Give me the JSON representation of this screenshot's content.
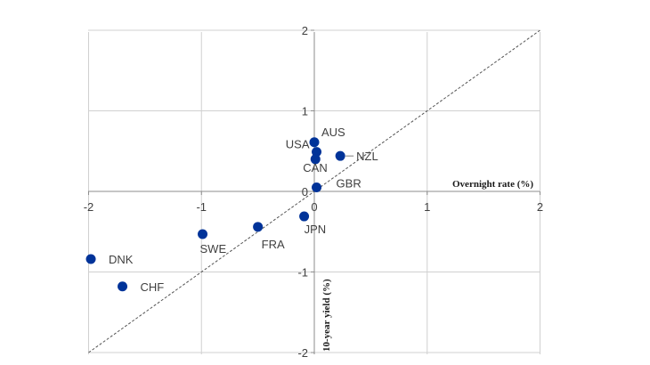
{
  "chart_data": {
    "type": "scatter",
    "xlabel": "Overnight rate (%)",
    "ylabel": "10-year yield (%)",
    "xlim": [
      -2,
      2
    ],
    "ylim": [
      -2,
      2
    ],
    "x_ticks": [
      "-2",
      "-1",
      "0",
      "1",
      "2"
    ],
    "y_ticks": [
      "2",
      "1",
      "0",
      "-1",
      "-2"
    ],
    "grid": true,
    "reference_line": "45-degree dashed line (y = x)",
    "marker_color": "#003399",
    "points": [
      {
        "label": "AUS",
        "x": 0.0,
        "y": 0.61
      },
      {
        "label": "USA",
        "x": 0.02,
        "y": 0.49
      },
      {
        "label": "CAN",
        "x": 0.01,
        "y": 0.4
      },
      {
        "label": "NZL",
        "x": 0.23,
        "y": 0.44
      },
      {
        "label": "GBR",
        "x": 0.02,
        "y": 0.05
      },
      {
        "label": "JPN",
        "x": -0.09,
        "y": -0.31
      },
      {
        "label": "FRA",
        "x": -0.5,
        "y": -0.44
      },
      {
        "label": "SWE",
        "x": -0.99,
        "y": -0.53
      },
      {
        "label": "DNK",
        "x": -1.98,
        "y": -0.84
      },
      {
        "label": "CHF",
        "x": -1.7,
        "y": -1.18
      }
    ]
  }
}
